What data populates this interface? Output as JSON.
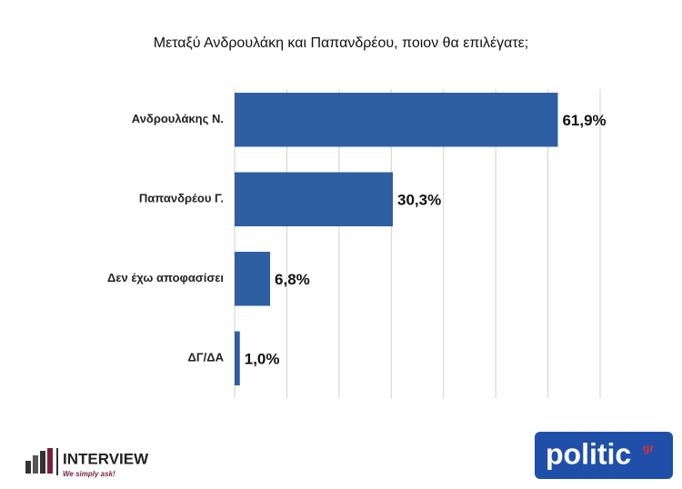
{
  "chart_data": {
    "type": "barh",
    "title": "Μεταξύ Ανδρουλάκη και Παπανδρέου, ποιον θα επιλέγατε;",
    "categories": [
      "Ανδρουλάκης Ν.",
      "Παπανδρέου Γ.",
      "Δεν έχω αποφασίσει",
      "ΔΓ/ΔΑ"
    ],
    "values": [
      61.9,
      30.3,
      6.8,
      1.0
    ],
    "value_labels": [
      "61,9%",
      "30,3%",
      "6,8%",
      "1,0%"
    ],
    "color": "#2e5fa3",
    "xlim": [
      0,
      70
    ],
    "xticks": [
      0,
      10,
      20,
      30,
      40,
      50,
      60,
      70
    ],
    "grid": true
  },
  "logos": {
    "interview": "INTERVIEW",
    "interview_slogan": "We simply ask!",
    "politic": "politic",
    "politic_suffix": "gr"
  }
}
